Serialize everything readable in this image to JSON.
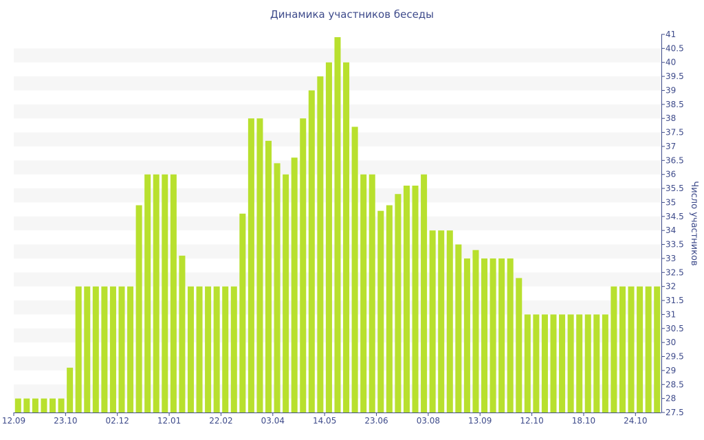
{
  "chart_data": {
    "type": "bar",
    "title": "Динамика участников беседы",
    "xlabel": "",
    "ylabel": "Число участников",
    "ylim": [
      27.5,
      41
    ],
    "y_ticks": [
      "27.5",
      "28",
      "28.5",
      "29",
      "29.5",
      "30",
      "30.5",
      "31",
      "31.5",
      "32",
      "32.5",
      "33",
      "33.5",
      "34",
      "34.5",
      "35",
      "35.5",
      "36",
      "36.5",
      "37",
      "37.5",
      "38",
      "38.5",
      "39",
      "39.5",
      "40",
      "40.5",
      "41"
    ],
    "y_axis_position": "right",
    "grid": "horizontal bands",
    "legend": "none",
    "x_tick_labels": [
      {
        "label": "12.09",
        "index": 0
      },
      {
        "label": "23.10",
        "index": 6
      },
      {
        "label": "02.12",
        "index": 12
      },
      {
        "label": "12.01",
        "index": 18
      },
      {
        "label": "22.02",
        "index": 24
      },
      {
        "label": "03.04",
        "index": 30
      },
      {
        "label": "14.05",
        "index": 36
      },
      {
        "label": "23.06",
        "index": 42
      },
      {
        "label": "03.08",
        "index": 48
      },
      {
        "label": "13.09",
        "index": 54
      },
      {
        "label": "12.10",
        "index": 60
      },
      {
        "label": "18.10",
        "index": 66
      },
      {
        "label": "24.10",
        "index": 72
      }
    ],
    "values": [
      28,
      28,
      28,
      28,
      28,
      28,
      29.1,
      32,
      32,
      32,
      32,
      32,
      32,
      32,
      34.9,
      36,
      36,
      36,
      36,
      33.1,
      32,
      32,
      32,
      32,
      32,
      32,
      34.6,
      38,
      38,
      37.2,
      36.4,
      36,
      36.6,
      38,
      39,
      39.5,
      40,
      40.9,
      40,
      37.7,
      36,
      36,
      34.7,
      34.9,
      35.3,
      35.6,
      35.6,
      36,
      34,
      34,
      34,
      33.5,
      33,
      33.3,
      33,
      33,
      33,
      33,
      32.3,
      31,
      31,
      31,
      31,
      31,
      31,
      31,
      31,
      31,
      31,
      32,
      32,
      32,
      32,
      32,
      32
    ],
    "colors": {
      "bar": "#b8e02e",
      "text": "#3d4a8a",
      "band": "#f6f6f6"
    }
  }
}
